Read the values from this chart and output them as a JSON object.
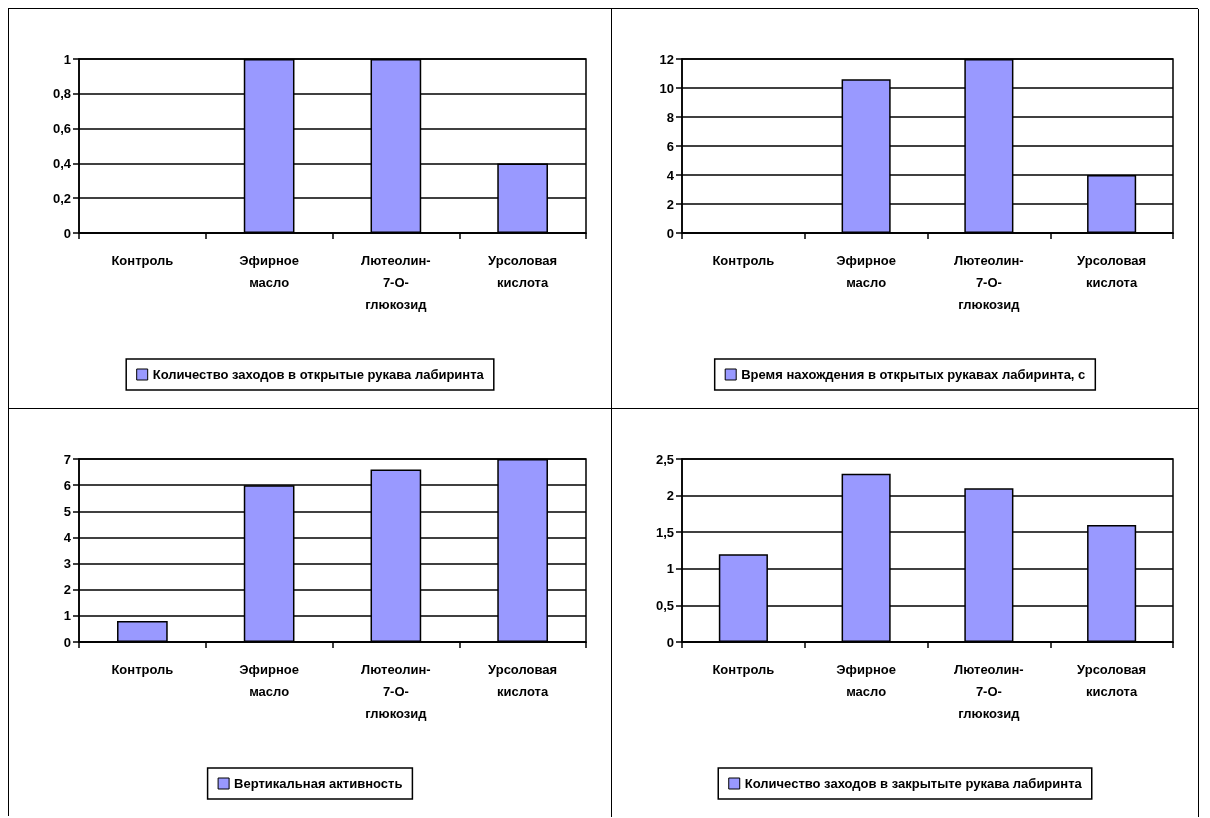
{
  "chart_data": [
    {
      "type": "bar",
      "categories": [
        "Контроль",
        "Эфирное масло",
        "Лютеолин-7-О-глюкозид",
        "Урсоловая кислота"
      ],
      "series": [
        {
          "name": "Количество заходов в открытые рукава лабиринта",
          "color": "#9999ff",
          "values": [
            0,
            1,
            1,
            0.4
          ]
        }
      ],
      "ylim": [
        0,
        1
      ],
      "yticks": [
        0,
        {
          "value": 0.2,
          "label": "0,2"
        },
        {
          "value": 0.4,
          "label": "0,4"
        },
        {
          "value": 0.6,
          "label": "0,6"
        },
        {
          "value": 0.8,
          "label": "0,8"
        },
        1
      ],
      "grid": "y",
      "legend": "bottom"
    },
    {
      "type": "bar",
      "categories": [
        "Контроль",
        "Эфирное масло",
        "Лютеолин-7-О-глюкозид",
        "Урсоловая кислота"
      ],
      "series": [
        {
          "name": "Время нахождения в открытых рукавах лабиринта, с",
          "color": "#9999ff",
          "values": [
            0,
            10.6,
            12,
            4
          ]
        }
      ],
      "ylim": [
        0,
        12
      ],
      "yticks": [
        0,
        2,
        4,
        6,
        8,
        10,
        12
      ],
      "grid": "y",
      "legend": "bottom"
    },
    {
      "type": "bar",
      "categories": [
        "Контроль",
        "Эфирное масло",
        "Лютеолин-7-О-глюкозид",
        "Урсоловая кислота"
      ],
      "series": [
        {
          "name": "Вертикальная активность",
          "color": "#9999ff",
          "values": [
            0.8,
            6,
            6.6,
            7
          ]
        }
      ],
      "ylim": [
        0,
        7
      ],
      "yticks": [
        0,
        1,
        2,
        3,
        4,
        5,
        6,
        7
      ],
      "grid": "y",
      "legend": "bottom"
    },
    {
      "type": "bar",
      "categories": [
        "Контроль",
        "Эфирное масло",
        "Лютеолин-7-О-глюкозид",
        "Урсоловая кислота"
      ],
      "series": [
        {
          "name": "Количество заходов в закрытыте рукава лабиринта",
          "color": "#9999ff",
          "values": [
            1.2,
            2.3,
            2.1,
            1.6
          ]
        }
      ],
      "ylim": [
        0,
        2.5
      ],
      "yticks": [
        0,
        {
          "value": 0.5,
          "label": "0,5"
        },
        1,
        {
          "value": 1.5,
          "label": "1,5"
        },
        2,
        {
          "value": 2.5,
          "label": "2,5"
        }
      ],
      "grid": "y",
      "legend": "bottom"
    }
  ]
}
